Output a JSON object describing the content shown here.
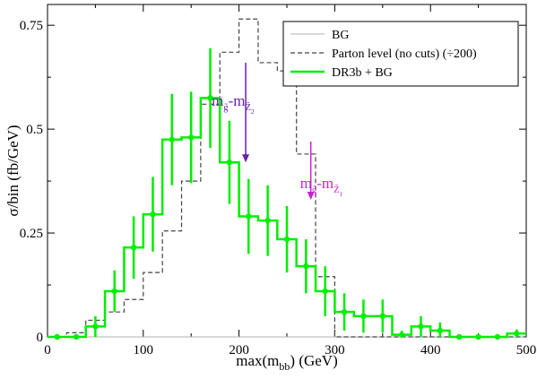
{
  "chart_data": {
    "type": "histogram",
    "xlabel": "max(m",
    "xlabel_sub": "bb",
    "xlabel_tail": ") (GeV)",
    "ylabel": "σ/bin (fb/GeV)",
    "xlim": [
      0,
      500
    ],
    "ylim": [
      0,
      0.8
    ],
    "xticks": [
      0,
      100,
      200,
      300,
      400,
      500
    ],
    "xtick_labels": [
      "0",
      "100",
      "200",
      "300",
      "400",
      "500"
    ],
    "yticks": [
      0,
      0.25,
      0.5,
      0.75
    ],
    "ytick_labels": [
      "0",
      "0.25",
      "0.5",
      "0.75"
    ],
    "grid": false,
    "legend_position": "top-right",
    "bin_edges": [
      0,
      20,
      40,
      60,
      80,
      100,
      120,
      140,
      160,
      180,
      200,
      220,
      240,
      260,
      280,
      300,
      320,
      340,
      360,
      380,
      400,
      420,
      440,
      460,
      480,
      500
    ],
    "series": [
      {
        "name": "BG",
        "style": "solid-thin",
        "color": "#b0b0b0",
        "values": [
          0,
          0,
          0,
          0,
          0,
          0,
          0,
          0,
          0,
          0,
          0,
          0,
          0,
          0,
          0,
          0,
          0,
          0,
          0,
          0,
          0,
          0,
          0,
          0,
          0
        ]
      },
      {
        "name": "Parton level (no cuts) (÷200)",
        "style": "dashed",
        "color": "#444444",
        "values": [
          0,
          0.01,
          0.04,
          0.06,
          0.09,
          0.155,
          0.255,
          0.375,
          0.56,
          0.685,
          0.765,
          0.66,
          0.64,
          0.44,
          0.145,
          0,
          0,
          0,
          0,
          0,
          0,
          0,
          0,
          0,
          0
        ]
      },
      {
        "name": "DR3b + BG",
        "style": "solid-thick",
        "color": "#00ee00",
        "x": [
          10,
          30,
          50,
          70,
          90,
          110,
          130,
          150,
          170,
          190,
          210,
          230,
          250,
          270,
          290,
          310,
          330,
          350,
          370,
          390,
          410,
          430,
          450,
          470,
          490
        ],
        "values": [
          0,
          0,
          0.025,
          0.11,
          0.215,
          0.295,
          0.475,
          0.48,
          0.575,
          0.42,
          0.29,
          0.28,
          0.235,
          0.17,
          0.11,
          0.06,
          0.05,
          0.05,
          0.005,
          0.025,
          0.015,
          0,
          0,
          0,
          0.008
        ],
        "errors": [
          0,
          0,
          0.025,
          0.05,
          0.075,
          0.09,
          0.11,
          0.11,
          0.12,
          0.1,
          0.09,
          0.085,
          0.08,
          0.065,
          0.06,
          0.045,
          0.04,
          0.04,
          0.01,
          0.025,
          0.02,
          0,
          0,
          0,
          0.01
        ]
      }
    ],
    "annotations": [
      {
        "label_main": "m",
        "label_sub": "g̃",
        "label_mid": "-m",
        "label_sub2": "Z̃",
        "label_subsub": "2",
        "color": "#6622aa",
        "arrow_x": 207,
        "arrow_y_top": 0.66,
        "arrow_y_bottom": 0.42
      },
      {
        "label_main": "m",
        "label_sub": "g̃",
        "label_mid": "-m",
        "label_sub2": "Z̃",
        "label_subsub": "1",
        "color": "#cc22cc",
        "arrow_x": 275,
        "arrow_y_top": 0.47,
        "arrow_y_bottom": 0.33
      }
    ]
  }
}
